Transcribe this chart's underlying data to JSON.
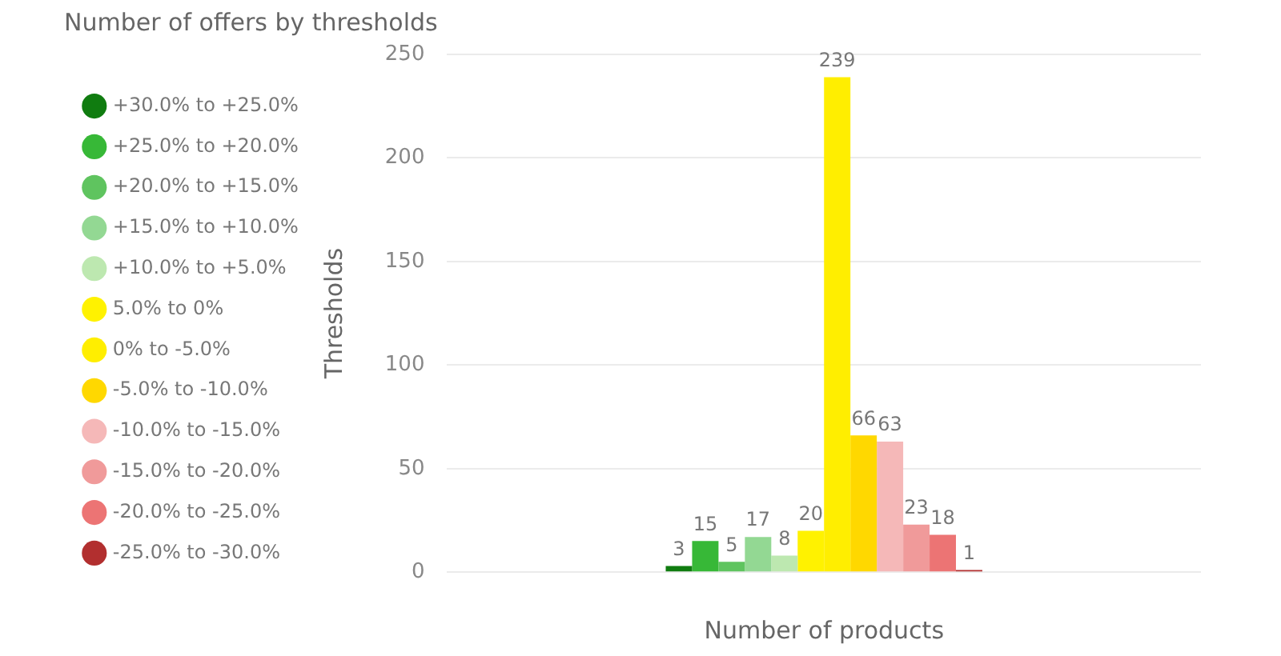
{
  "chart_data": {
    "type": "bar",
    "title": "Number of offers by thresholds",
    "xlabel": "Number of products",
    "ylabel": "Thresholds",
    "categories": [
      null
    ],
    "series": [
      {
        "name": "+30.0% to +25.0%",
        "color": "#107c10",
        "values": [
          3
        ]
      },
      {
        "name": "+25.0% to +20.0%",
        "color": "#37b837",
        "values": [
          15
        ]
      },
      {
        "name": "+20.0% to +15.0%",
        "color": "#5fc45f",
        "values": [
          5
        ]
      },
      {
        "name": "+15.0% to +10.0%",
        "color": "#93d893",
        "values": [
          17
        ]
      },
      {
        "name": "+10.0% to +5.0%",
        "color": "#bde8b0",
        "values": [
          8
        ]
      },
      {
        "name": "5.0% to 0%",
        "color": "#fff200",
        "values": [
          20
        ]
      },
      {
        "name": "0% to -5.0%",
        "color": "#ffee00",
        "values": [
          239
        ]
      },
      {
        "name": "-5.0% to -10.0%",
        "color": "#ffd800",
        "values": [
          66
        ]
      },
      {
        "name": "-10.0% to -15.0%",
        "color": "#f5b8b8",
        "values": [
          63
        ]
      },
      {
        "name": "-15.0% to -20.0%",
        "color": "#f09a9a",
        "values": [
          23
        ]
      },
      {
        "name": "-20.0% to -25.0%",
        "color": "#ec7474",
        "values": [
          18
        ]
      },
      {
        "name": "-25.0% to -30.0%",
        "color": "#b22f2f",
        "values": [
          1
        ]
      }
    ],
    "ylim": [
      0,
      250
    ],
    "yticks": [
      0,
      50,
      100,
      150,
      200,
      250
    ],
    "grid": "y",
    "legend": "left",
    "data_labels": true
  }
}
